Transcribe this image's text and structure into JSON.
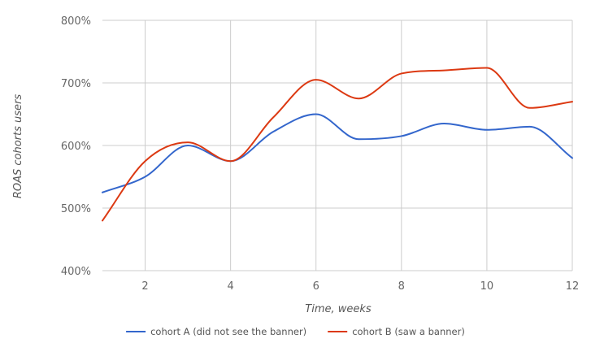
{
  "chart_data": {
    "type": "line",
    "title": "",
    "xlabel": "Time, weeks",
    "ylabel": "ROAS cohorts users",
    "x": [
      1,
      2,
      3,
      4,
      5,
      6,
      7,
      8,
      9,
      10,
      11,
      12
    ],
    "xlim": [
      1,
      12
    ],
    "ylim": [
      400,
      800
    ],
    "x_ticks": [
      2,
      4,
      6,
      8,
      10,
      12
    ],
    "x_tick_labels": [
      "2",
      "4",
      "6",
      "8",
      "10",
      "12"
    ],
    "y_ticks": [
      400,
      500,
      600,
      700,
      800
    ],
    "y_tick_labels": [
      "400%",
      "500%",
      "600%",
      "700%",
      "800%"
    ],
    "grid": true,
    "legend_position": "bottom",
    "series": [
      {
        "name": "cohort A (did not see the banner)",
        "color": "#3366cc",
        "values": [
          525,
          550,
          600,
          575,
          622,
          650,
          610,
          615,
          635,
          625,
          630,
          580
        ]
      },
      {
        "name": "cohort B (saw a banner)",
        "color": "#dc3912",
        "values": [
          480,
          575,
          605,
          575,
          645,
          705,
          675,
          715,
          720,
          724,
          660,
          670
        ]
      }
    ]
  }
}
